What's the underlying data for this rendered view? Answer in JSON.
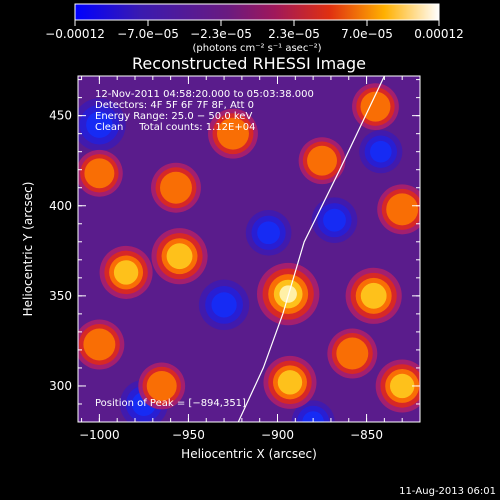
{
  "chart_data": {
    "type": "heatmap",
    "title": "Reconstructed RHESSI Image",
    "xlabel": "Heliocentric X (arcsec)",
    "ylabel": "Heliocentric Y (arcsec)",
    "xlim": [
      -1012,
      -820
    ],
    "ylim": [
      280,
      472
    ],
    "x_ticks": [
      -1000,
      -950,
      -900,
      -850
    ],
    "x_tick_labels": [
      "−1000",
      "−950",
      "−900",
      "−850"
    ],
    "y_ticks": [
      300,
      350,
      400,
      450
    ],
    "y_tick_labels": [
      "300",
      "350",
      "400",
      "450"
    ],
    "colorbar": {
      "min": -0.00012,
      "max": 0.00012,
      "tick_labels": [
        "−0.00012",
        "−7.0e−05",
        "−2.3e−05",
        "2.3e−05",
        "7.0e−05",
        "0.00012"
      ],
      "unit_label": "(photons cm⁻² s⁻¹ asec⁻²)"
    },
    "annotations": [
      "12‑Nov‑2011 04:58:20.000 to 05:03:38.000",
      "Detectors: 4F 5F 6F 7F 8F, Att 0",
      "Energy Range: 25.0 − 50.0 keV",
      "Clean     Total counts: 1.12E+04"
    ],
    "peak_label": "Position of Peak = [−894,351]",
    "peak": [
      -894,
      351
    ],
    "hot_spots": [
      {
        "x": -894,
        "y": 351,
        "v": 1.0
      },
      {
        "x": -955,
        "y": 372,
        "v": 0.8
      },
      {
        "x": -985,
        "y": 363,
        "v": 0.7
      },
      {
        "x": -846,
        "y": 350,
        "v": 0.8
      },
      {
        "x": -830,
        "y": 300,
        "v": 0.7
      },
      {
        "x": -893,
        "y": 302,
        "v": 0.7
      },
      {
        "x": -858,
        "y": 318,
        "v": 0.6
      },
      {
        "x": -925,
        "y": 440,
        "v": 0.6
      },
      {
        "x": -957,
        "y": 410,
        "v": 0.6
      },
      {
        "x": -875,
        "y": 425,
        "v": 0.5
      },
      {
        "x": -965,
        "y": 300,
        "v": 0.5
      },
      {
        "x": -1000,
        "y": 323,
        "v": 0.6
      },
      {
        "x": -845,
        "y": 455,
        "v": 0.5
      },
      {
        "x": -830,
        "y": 398,
        "v": 0.6
      },
      {
        "x": -1000,
        "y": 418,
        "v": 0.5
      }
    ],
    "cold_spots": [
      {
        "x": -1000,
        "y": 445,
        "v": 0.8
      },
      {
        "x": -930,
        "y": 345,
        "v": 0.7
      },
      {
        "x": -975,
        "y": 290,
        "v": 0.6
      },
      {
        "x": -905,
        "y": 385,
        "v": 0.5
      },
      {
        "x": -868,
        "y": 392,
        "v": 0.5
      },
      {
        "x": -842,
        "y": 430,
        "v": 0.4
      },
      {
        "x": -880,
        "y": 280,
        "v": 0.4
      }
    ],
    "limb_curve": [
      [
        -922,
        280
      ],
      [
        -908,
        310
      ],
      [
        -897,
        340
      ],
      [
        -885,
        380
      ],
      [
        -865,
        420
      ],
      [
        -840,
        472
      ]
    ],
    "grid": false
  },
  "footer": {
    "timestamp": "11‑Aug‑2013 06:01"
  }
}
